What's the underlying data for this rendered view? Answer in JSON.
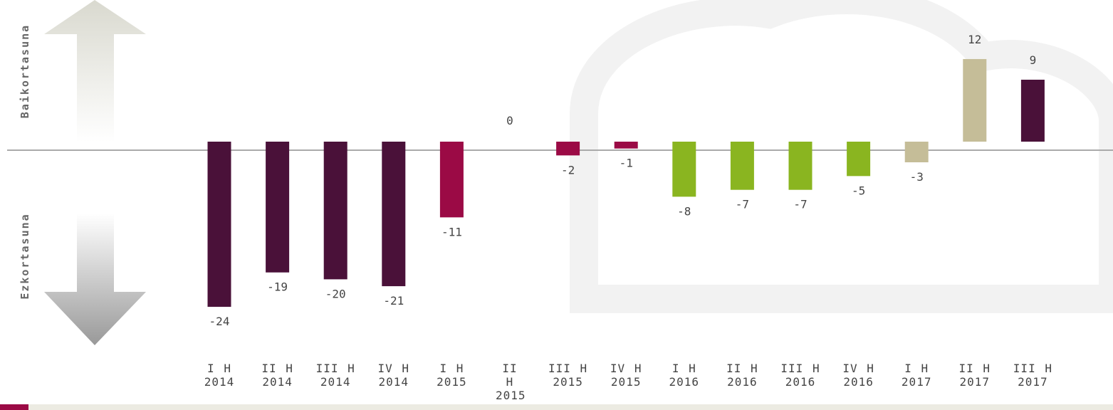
{
  "chart_data": {
    "type": "bar",
    "top_label": "Baikortasuna",
    "bottom_label": "Ezkortasuna",
    "categories": [
      "I H 2014",
      "II H 2014",
      "III H 2014",
      "IV H 2014",
      "I H 2015",
      "II H 2015",
      "III H 2015",
      "IV H 2015",
      "I H 2016",
      "II H 2016",
      "III H 2016",
      "IV H 2016",
      "I H 2017",
      "II H 2017",
      "III H 2017"
    ],
    "values": [
      -24,
      -19,
      -20,
      -21,
      -11,
      0,
      -2,
      -1,
      -8,
      -7,
      -7,
      -5,
      -3,
      12,
      9
    ],
    "colors": [
      "#4a1139",
      "#4a1139",
      "#4a1139",
      "#4a1139",
      "#9b0a45",
      "#9b0a45",
      "#9b0a45",
      "#9b0a45",
      "#8ab520",
      "#8ab520",
      "#8ab520",
      "#8ab520",
      "#c5bd98",
      "#c5bd98",
      "#4a1139"
    ]
  }
}
